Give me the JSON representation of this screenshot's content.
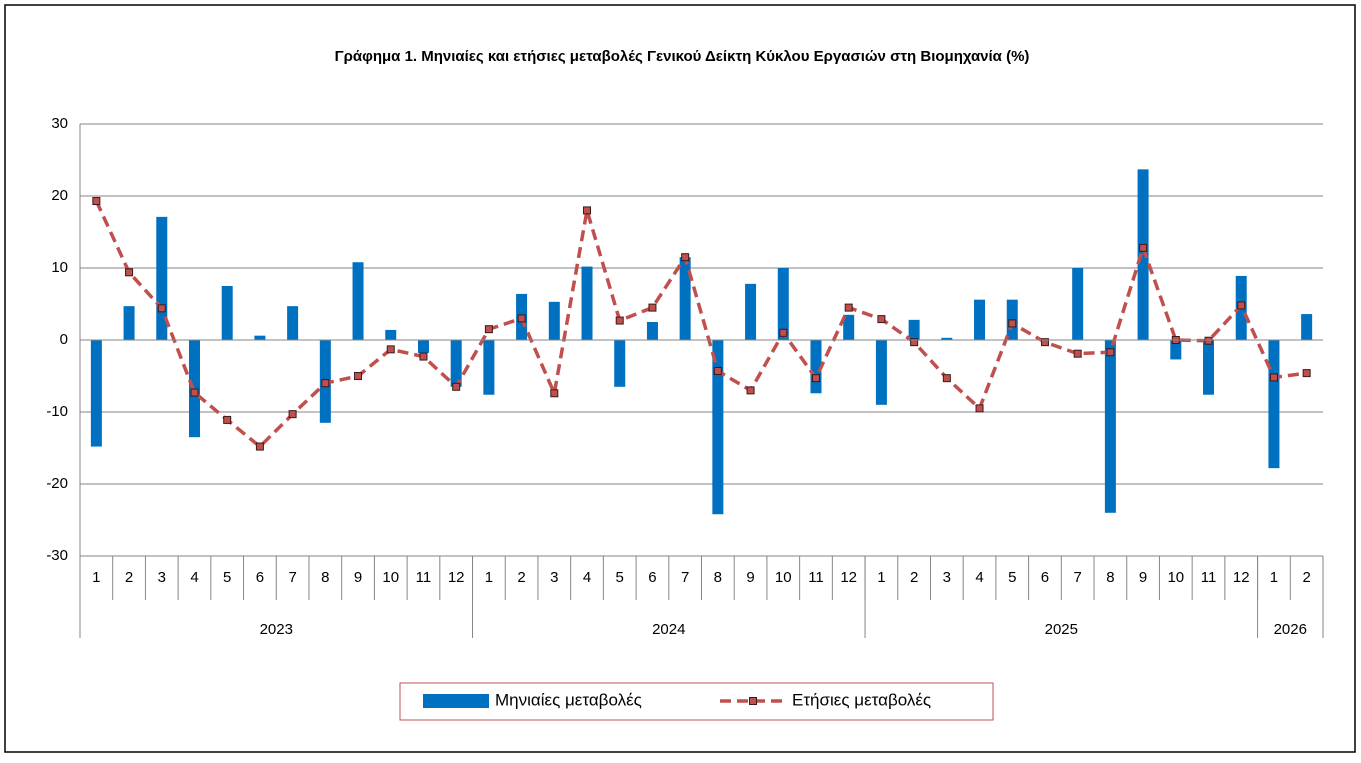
{
  "chart_data": {
    "type": "bar-line",
    "title": "Γράφημα 1.  Μηνιαίες και ετήσιες μεταβολές  Γενικού Δείκτη Κύκλου Εργασιών στη Βιομηχανία (%)",
    "categories": [
      "1",
      "2",
      "3",
      "4",
      "5",
      "6",
      "7",
      "8",
      "9",
      "10",
      "11",
      "12",
      "1",
      "2",
      "3",
      "4",
      "5",
      "6",
      "7",
      "8",
      "9",
      "10",
      "11",
      "12",
      "1",
      "2",
      "3",
      "4",
      "5",
      "6",
      "7",
      "8",
      "9",
      "10",
      "11",
      "12",
      "1",
      "2"
    ],
    "groups": [
      {
        "label": "2023",
        "span": 12
      },
      {
        "label": "2024",
        "span": 12
      },
      {
        "label": "2025",
        "span": 12
      },
      {
        "label": "2026",
        "span": 2
      }
    ],
    "series": [
      {
        "name": "Μηνιαίες μεταβολές",
        "type": "bar",
        "color": "#0070c0",
        "values": [
          -14.8,
          4.7,
          17.1,
          -13.5,
          7.5,
          0.6,
          4.7,
          -11.5,
          10.8,
          1.4,
          -1.8,
          -6.5,
          -7.6,
          6.4,
          5.3,
          10.2,
          -6.5,
          2.5,
          11.5,
          -24.2,
          7.8,
          10.0,
          -7.4,
          3.5,
          -9.0,
          2.8,
          0.3,
          5.6,
          5.6,
          0.0,
          10.0,
          -24.0,
          23.7,
          -2.7,
          -7.6,
          8.9,
          -17.8,
          3.6
        ]
      },
      {
        "name": "Ετήσιες μεταβολές",
        "type": "line",
        "color": "#c0504d",
        "values": [
          19.3,
          9.4,
          4.4,
          -7.3,
          -11.1,
          -14.8,
          -10.3,
          -6.0,
          -5.0,
          -1.3,
          -2.3,
          -6.5,
          1.5,
          3.0,
          -7.4,
          18.0,
          2.7,
          4.5,
          11.5,
          -4.3,
          -7.0,
          1.0,
          -5.3,
          4.5,
          2.9,
          -0.3,
          -5.3,
          -9.5,
          2.3,
          -0.3,
          -1.9,
          -1.7,
          12.8,
          0.0,
          -0.1,
          4.8,
          -5.2,
          -4.6
        ]
      }
    ],
    "ylim": [
      -30,
      30
    ],
    "yticks": [
      -30,
      -20,
      -10,
      0,
      10,
      20,
      30
    ],
    "grid": true,
    "legend": "bottom"
  }
}
